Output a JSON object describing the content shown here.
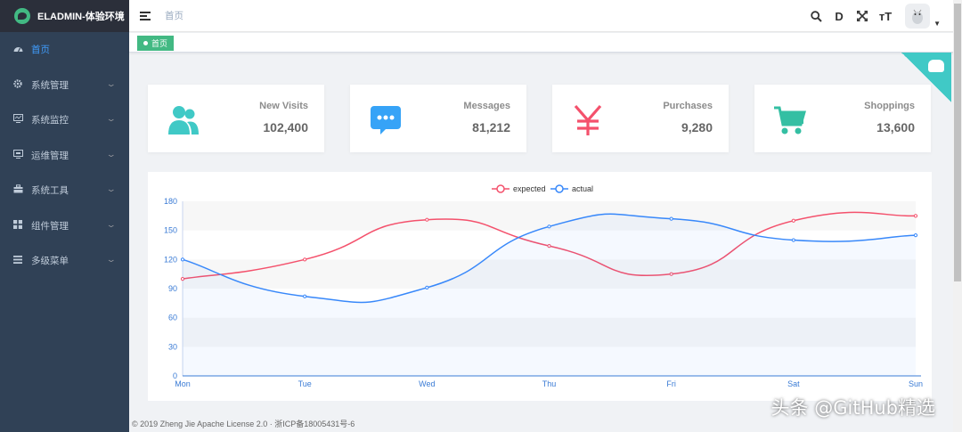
{
  "app": {
    "title": "ELADMIN-体验环境"
  },
  "sidebar": {
    "items": [
      {
        "label": "首页",
        "icon": "dashboard-icon",
        "active": true
      },
      {
        "label": "系统管理",
        "icon": "gear-icon"
      },
      {
        "label": "系统监控",
        "icon": "monitor-icon"
      },
      {
        "label": "运维管理",
        "icon": "server-icon"
      },
      {
        "label": "系统工具",
        "icon": "toolbox-icon"
      },
      {
        "label": "组件管理",
        "icon": "component-icon"
      },
      {
        "label": "多级菜单",
        "icon": "list-icon"
      }
    ]
  },
  "navbar": {
    "breadcrumb": "首页",
    "tools": [
      {
        "name": "search-icon",
        "glyph": ""
      },
      {
        "name": "doc-icon",
        "glyph": "D"
      },
      {
        "name": "fullscreen-icon",
        "glyph": ""
      },
      {
        "name": "font-size-icon",
        "glyph": "тT"
      }
    ]
  },
  "tags": {
    "active": "首页"
  },
  "cards": [
    {
      "title": "New Visits",
      "value": "102,400",
      "icon": "people-icon",
      "color": "#40c9c6"
    },
    {
      "title": "Messages",
      "value": "81,212",
      "icon": "message-icon",
      "color": "#36a3f7"
    },
    {
      "title": "Purchases",
      "value": "9,280",
      "icon": "yen-icon",
      "color": "#f4516c"
    },
    {
      "title": "Shoppings",
      "value": "13,600",
      "icon": "shopping-cart-icon",
      "color": "#34bfa3"
    }
  ],
  "chart_data": {
    "type": "line",
    "categories": [
      "Mon",
      "Tue",
      "Wed",
      "Thu",
      "Fri",
      "Sat",
      "Sun"
    ],
    "series": [
      {
        "name": "expected",
        "values": [
          100,
          120,
          161,
          134,
          105,
          160,
          165
        ],
        "color": "#f4516c"
      },
      {
        "name": "actual",
        "values": [
          120,
          82,
          91,
          154,
          162,
          140,
          145
        ],
        "color": "#3888fa"
      }
    ],
    "ylim": [
      0,
      180
    ],
    "yticks": [
      0,
      30,
      60,
      90,
      120,
      150,
      180
    ],
    "legend": "top-center",
    "grid": true
  },
  "footer": {
    "text": "© 2019 Zheng Jie Apache License 2.0 · 浙ICP备18005431号-6"
  },
  "watermark": {
    "text": "头条 @GitHub精选"
  }
}
